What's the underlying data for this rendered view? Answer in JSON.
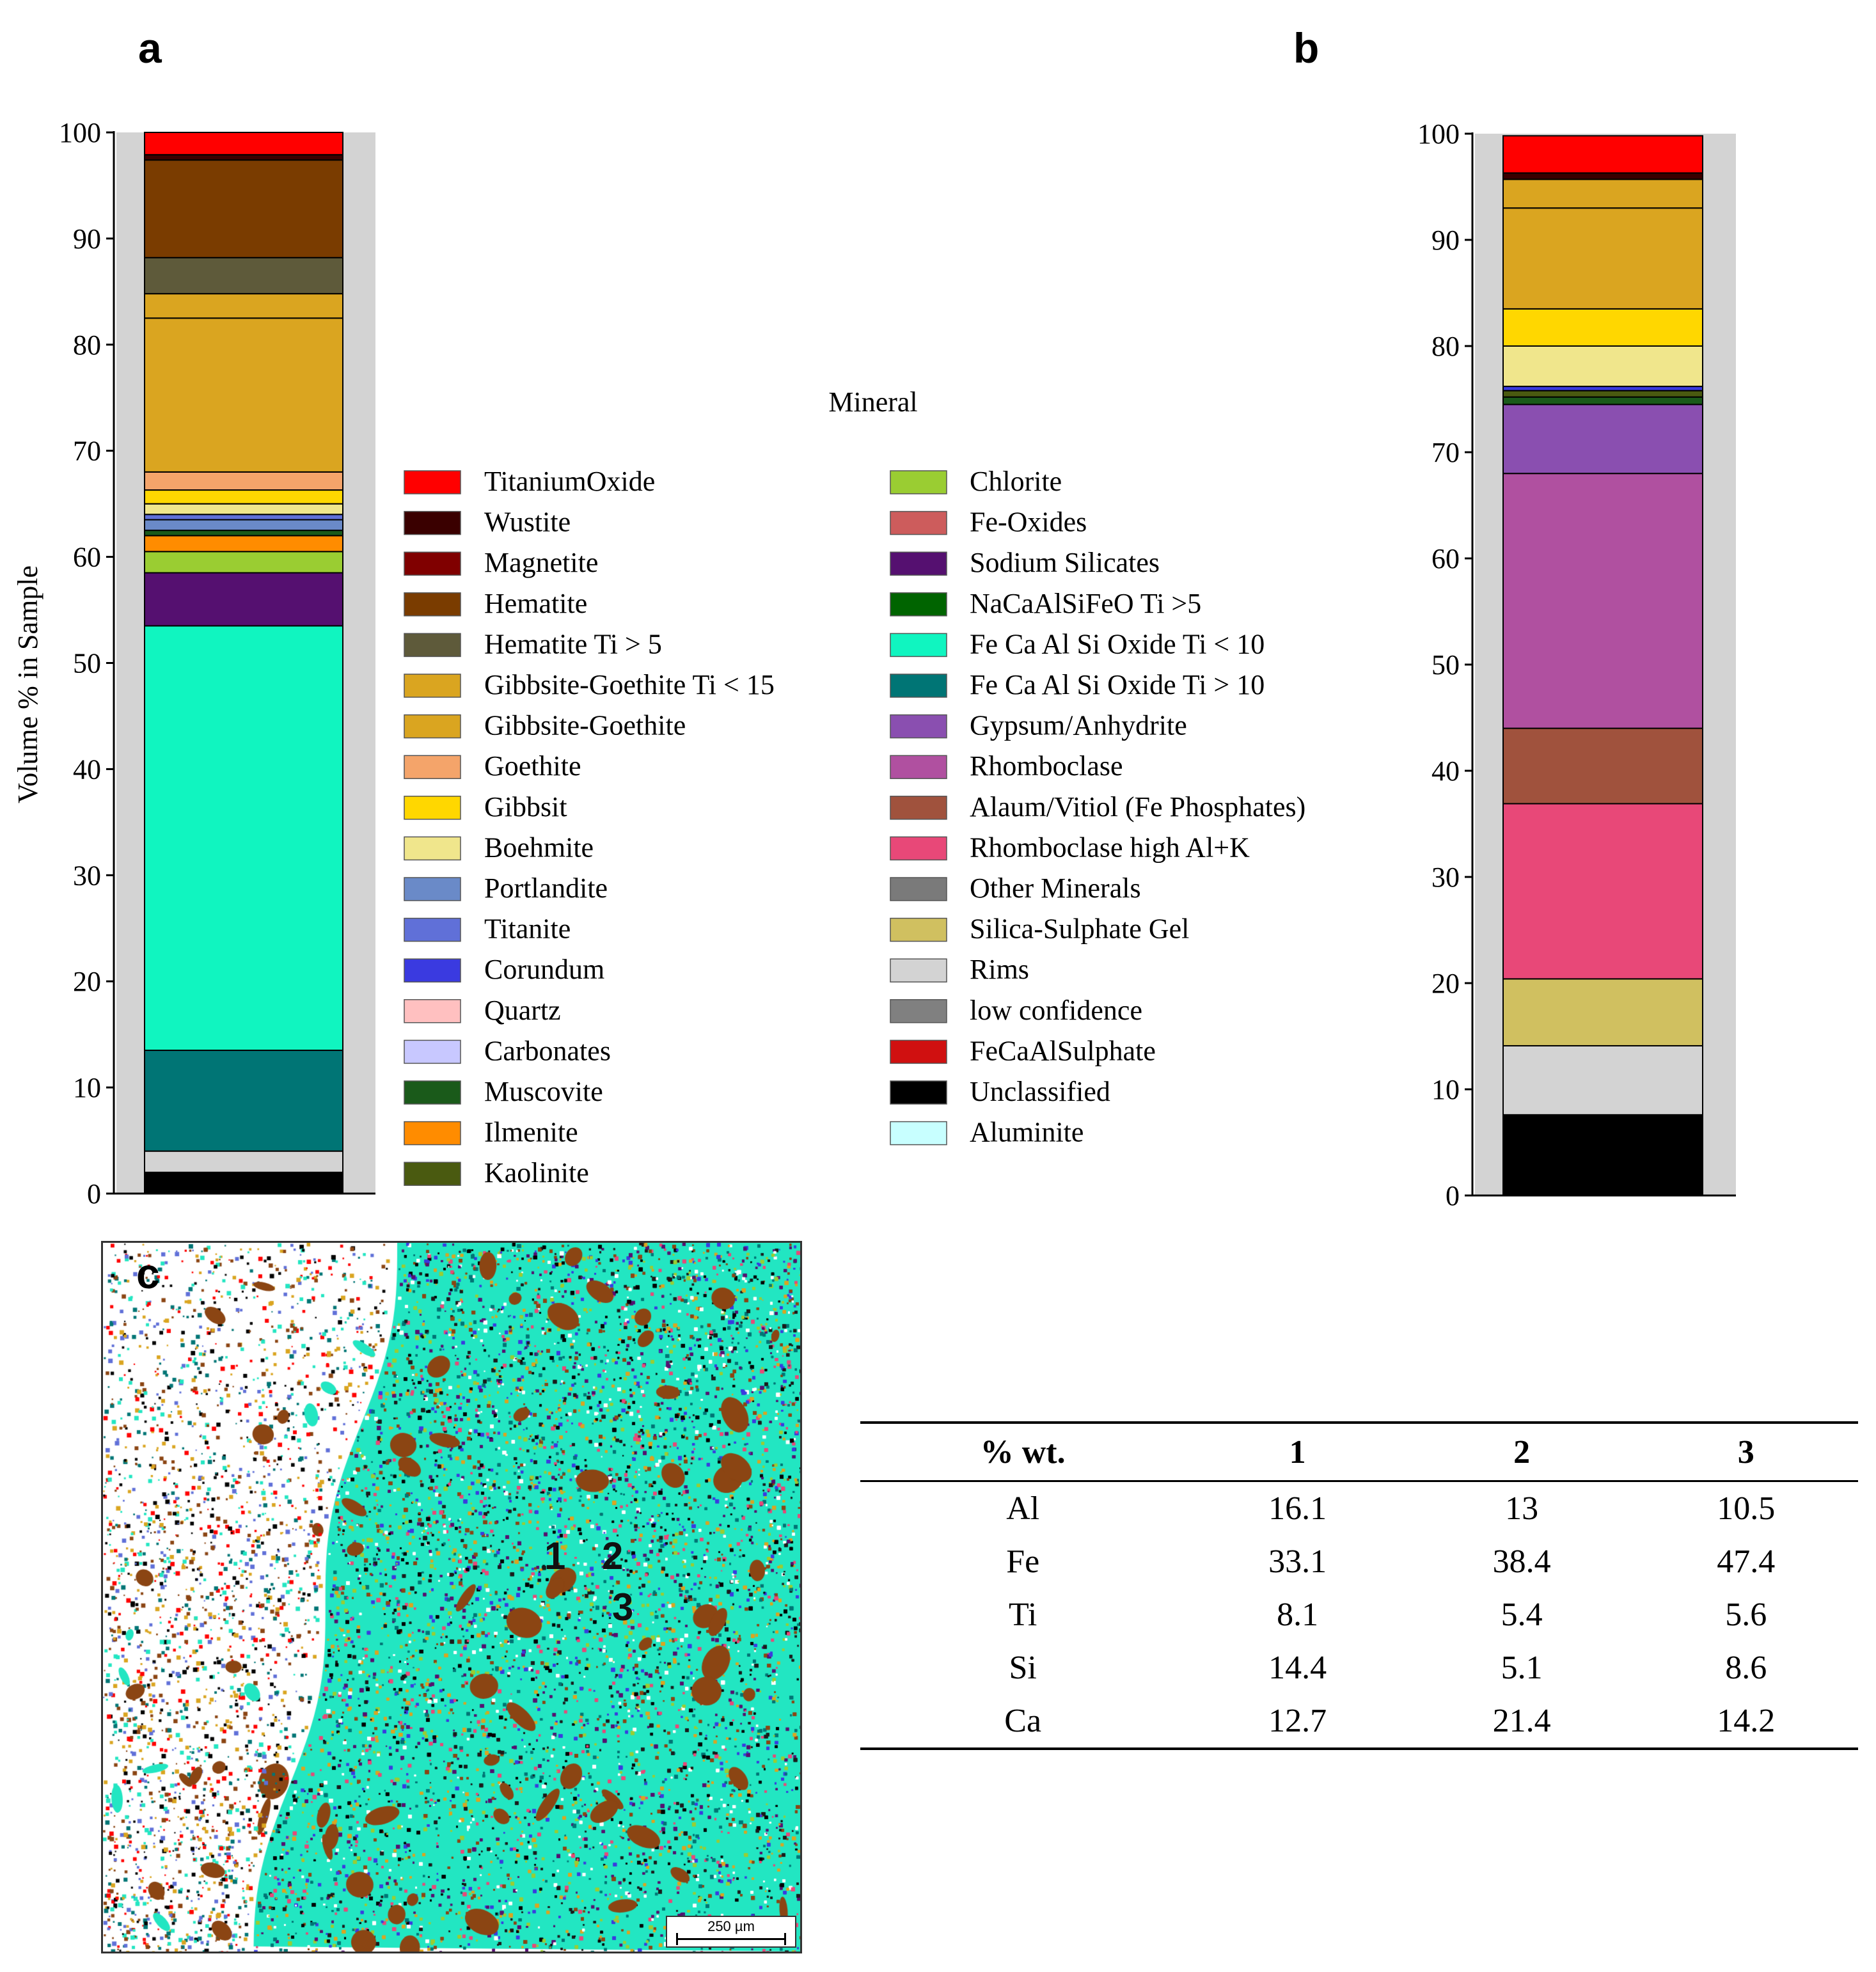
{
  "chart_data": [
    {
      "type": "stacked-bar",
      "panel": "a",
      "ylabel": "Volume % in Sample",
      "ylim": [
        0,
        100
      ],
      "yticks": [
        0,
        10,
        20,
        30,
        40,
        50,
        60,
        70,
        80,
        90,
        100
      ],
      "segments": [
        {
          "mineral": "Unclassified",
          "value": 2.0
        },
        {
          "mineral": "Rims",
          "value": 2.0
        },
        {
          "mineral": "Fe Ca Al Si Oxide Ti > 10",
          "value": 9.5
        },
        {
          "mineral": "Fe Ca Al Si Oxide Ti < 10",
          "value": 40.0
        },
        {
          "mineral": "Sodium Silicates",
          "value": 5.0
        },
        {
          "mineral": "Chlorite",
          "value": 2.0
        },
        {
          "mineral": "Ilmenite",
          "value": 1.5
        },
        {
          "mineral": "Muscovite",
          "value": 0.5
        },
        {
          "mineral": "Portlandite",
          "value": 1.0
        },
        {
          "mineral": "Titanite",
          "value": 0.5
        },
        {
          "mineral": "Boehmite",
          "value": 1.0
        },
        {
          "mineral": "Gibbsit",
          "value": 1.3
        },
        {
          "mineral": "Goethite",
          "value": 1.7
        },
        {
          "mineral": "Gibbsite-Goethite",
          "value": 14.5
        },
        {
          "mineral": "Gibbsite-Goethite Ti < 15",
          "value": 2.3
        },
        {
          "mineral": "Hematite Ti > 5",
          "value": 3.4
        },
        {
          "mineral": "Hematite",
          "value": 9.2
        },
        {
          "mineral": "Wustite",
          "value": 0.5
        },
        {
          "mineral": "TitaniumOxide",
          "value": 2.1
        }
      ]
    },
    {
      "type": "stacked-bar",
      "panel": "b",
      "ylabel": "",
      "ylim": [
        0,
        100
      ],
      "yticks": [
        0,
        10,
        20,
        30,
        40,
        50,
        60,
        70,
        80,
        90,
        100
      ],
      "segments": [
        {
          "mineral": "Unclassified",
          "value": 7.6
        },
        {
          "mineral": "Rims",
          "value": 6.5
        },
        {
          "mineral": "Silica-Sulphate Gel",
          "value": 6.3
        },
        {
          "mineral": "Rhomboclase high Al+K",
          "value": 16.5
        },
        {
          "mineral": "Alaum/Vitiol (Fe Phosphates)",
          "value": 7.1
        },
        {
          "mineral": "Rhomboclase",
          "value": 24.0
        },
        {
          "mineral": "Gypsum/Anhydrite",
          "value": 6.5
        },
        {
          "mineral": "Muscovite",
          "value": 0.7
        },
        {
          "mineral": "Kaolinite",
          "value": 0.6
        },
        {
          "mineral": "Corundum",
          "value": 0.4
        },
        {
          "mineral": "Boehmite",
          "value": 3.8
        },
        {
          "mineral": "Gibbsit",
          "value": 3.5
        },
        {
          "mineral": "Gibbsite-Goethite",
          "value": 9.5
        },
        {
          "mineral": "Gibbsite-Goethite Ti < 15",
          "value": 2.7
        },
        {
          "mineral": "Wustite",
          "value": 0.6
        },
        {
          "mineral": "TitaniumOxide",
          "value": 3.5
        }
      ]
    },
    {
      "type": "table",
      "panel": "c",
      "columns": [
        "% wt.",
        "1",
        "2",
        "3"
      ],
      "rows": [
        [
          "Al",
          "16.1",
          "13",
          "10.5"
        ],
        [
          "Fe",
          "33.1",
          "38.4",
          "47.4"
        ],
        [
          "Ti",
          "8.1",
          "5.4",
          "5.6"
        ],
        [
          "Si",
          "14.4",
          "5.1",
          "8.6"
        ],
        [
          "Ca",
          "12.7",
          "21.4",
          "14.2"
        ]
      ]
    }
  ],
  "legend": {
    "title": "Mineral",
    "entries": [
      {
        "label": "TitaniumOxide",
        "color": "#FF0000"
      },
      {
        "label": "Wustite",
        "color": "#3A0000"
      },
      {
        "label": "Magnetite",
        "color": "#800000"
      },
      {
        "label": "Hematite",
        "color": "#7A3C00"
      },
      {
        "label": "Hematite Ti > 5",
        "color": "#5E5A3A"
      },
      {
        "label": "Gibbsite-Goethite Ti < 15",
        "color": "#DAA520"
      },
      {
        "label": "Gibbsite-Goethite",
        "color": "#DAA520"
      },
      {
        "label": "Goethite",
        "color": "#F4A46A"
      },
      {
        "label": "Gibbsit",
        "color": "#FFD700"
      },
      {
        "label": "Boehmite",
        "color": "#F0E68C"
      },
      {
        "label": "Portlandite",
        "color": "#6A8AC8"
      },
      {
        "label": "Titanite",
        "color": "#6070D8"
      },
      {
        "label": "Corundum",
        "color": "#3A3AE0"
      },
      {
        "label": "Quartz",
        "color": "#FFC0C0"
      },
      {
        "label": "Carbonates",
        "color": "#C8C8FF"
      },
      {
        "label": "Muscovite",
        "color": "#1A5A1A"
      },
      {
        "label": "Ilmenite",
        "color": "#FF8C00"
      },
      {
        "label": "Kaolinite",
        "color": "#4A5A10"
      },
      {
        "label": "Chlorite",
        "color": "#9ACD32"
      },
      {
        "label": "Fe-Oxides",
        "color": "#CD5C5C"
      },
      {
        "label": "Sodium Silicates",
        "color": "#551070"
      },
      {
        "label": "NaCaAlSiFeO Ti >5",
        "color": "#006400"
      },
      {
        "label": "Fe Ca Al Si Oxide Ti < 10",
        "color": "#10F5C0"
      },
      {
        "label": "Fe Ca Al Si Oxide Ti > 10",
        "color": "#007575"
      },
      {
        "label": "Gypsum/Anhydrite",
        "color": "#8A4FB0"
      },
      {
        "label": "Rhomboclase",
        "color": "#B050A0"
      },
      {
        "label": "Alaum/Vitiol (Fe Phosphates)",
        "color": "#A0523D"
      },
      {
        "label": "Rhomboclase high Al+K",
        "color": "#E84878"
      },
      {
        "label": "Other Minerals",
        "color": "#7A7A7A"
      },
      {
        "label": "Silica-Sulphate Gel",
        "color": "#D0C060"
      },
      {
        "label": "Rims",
        "color": "#D3D3D3"
      },
      {
        "label": "low confidence",
        "color": "#808080"
      },
      {
        "label": "FeCaAlSulphate",
        "color": "#D01010"
      },
      {
        "label": "Unclassified",
        "color": "#000000"
      },
      {
        "label": "Aluminite",
        "color": "#C8FFFF"
      }
    ]
  },
  "panels": {
    "a": "a",
    "b": "b",
    "c": "c"
  },
  "map": {
    "point_labels": [
      "1",
      "2",
      "3"
    ],
    "scale_bar": "250 µm"
  }
}
